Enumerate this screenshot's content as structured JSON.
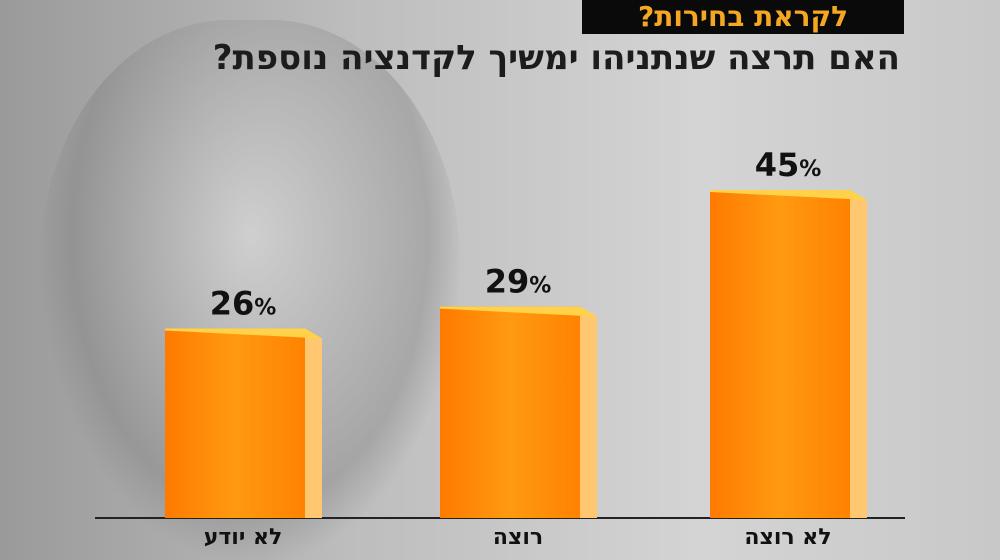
{
  "chart_data": {
    "type": "bar",
    "title": "לקראת בחירות?",
    "subtitle": "האם תרצה שנתניהו ימשיך לקדנציה נוספת?",
    "categories": [
      "לא יודע",
      "רוצה",
      "לא רוצה"
    ],
    "values": [
      26,
      29,
      45
    ],
    "value_labels": [
      "26%",
      "29%",
      "45%"
    ],
    "unit": "%",
    "ylim": [
      0,
      50
    ],
    "grid": false,
    "colors": {
      "bar": "#ff8a00",
      "bar_top": "#ffd24a",
      "bar_side": "#ffc870",
      "banner_bg": "#0a0a0a",
      "banner_text": "#f5a623"
    }
  }
}
